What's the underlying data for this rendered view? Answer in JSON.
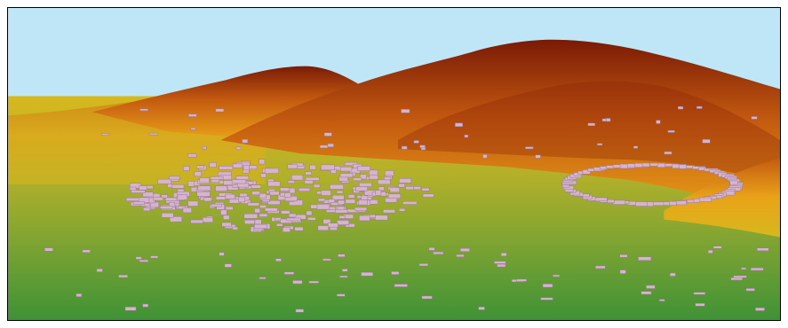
{
  "scene": {
    "description_free": true,
    "colors": {
      "sky": "#bfe6f6",
      "ridge_peak": "#7a1a06",
      "ridge_mid": "#c45a10",
      "ridge_low": "#e9a318",
      "slope": "#d7b81e",
      "valley_high": "#b3b02a",
      "valley_mid": "#7fa432",
      "valley_low": "#3f9236",
      "building": "#d6b4ce",
      "building_shadow": "#9a7a96",
      "frame_border": "#000000"
    }
  }
}
